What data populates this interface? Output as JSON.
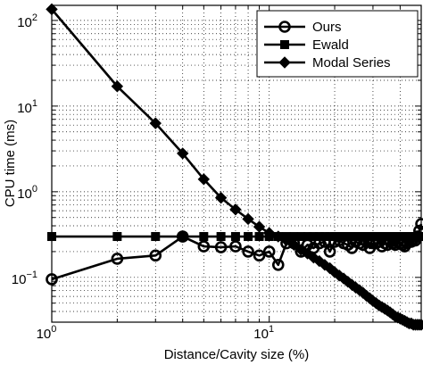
{
  "chart_data": {
    "type": "line",
    "xlabel": "Distance/Cavity size (%)",
    "ylabel": "CPU time (ms)",
    "x_scale": "log",
    "y_scale": "log",
    "xlim": [
      1,
      50
    ],
    "ylim": [
      0.03,
      150
    ],
    "x_ticks": [
      {
        "value": 1,
        "label": "10",
        "exp": "0"
      },
      {
        "value": 10,
        "label": "10",
        "exp": "1"
      }
    ],
    "y_ticks": [
      {
        "value": 0.1,
        "label": "10",
        "exp": "−1"
      },
      {
        "value": 1,
        "label": "10",
        "exp": "0"
      },
      {
        "value": 10,
        "label": "10",
        "exp": "1"
      },
      {
        "value": 100,
        "label": "10",
        "exp": "2"
      }
    ],
    "grid": true,
    "legend_position": "top-right",
    "colors": {
      "lines": "#000000",
      "grid": "#000000",
      "background": "#ffffff"
    },
    "series": [
      {
        "name": "Ours",
        "marker": "circle",
        "x": [
          1,
          2,
          3,
          4,
          5,
          6,
          7,
          8,
          9,
          10,
          11,
          12,
          13,
          14,
          15,
          16,
          17,
          18,
          19,
          20,
          21,
          22,
          23,
          24,
          25,
          26,
          27,
          28,
          29,
          30,
          31,
          32,
          33,
          34,
          35,
          36,
          37,
          38,
          39,
          40,
          41,
          42,
          43,
          44,
          45,
          46,
          47,
          48,
          49,
          50
        ],
        "y": [
          0.095,
          0.165,
          0.18,
          0.3,
          0.23,
          0.225,
          0.23,
          0.2,
          0.18,
          0.2,
          0.14,
          0.25,
          0.25,
          0.2,
          0.24,
          0.22,
          0.25,
          0.26,
          0.2,
          0.26,
          0.27,
          0.25,
          0.24,
          0.22,
          0.26,
          0.25,
          0.24,
          0.26,
          0.22,
          0.25,
          0.25,
          0.26,
          0.23,
          0.25,
          0.24,
          0.26,
          0.25,
          0.24,
          0.26,
          0.25,
          0.24,
          0.23,
          0.25,
          0.27,
          0.26,
          0.28,
          0.27,
          0.3,
          0.35,
          0.42
        ]
      },
      {
        "name": "Ewald",
        "marker": "square",
        "x": [
          1,
          2,
          3,
          4,
          5,
          6,
          7,
          8,
          9,
          10,
          11,
          12,
          13,
          14,
          15,
          16,
          17,
          18,
          19,
          20,
          21,
          22,
          23,
          24,
          25,
          26,
          27,
          28,
          29,
          30,
          31,
          32,
          33,
          34,
          35,
          36,
          37,
          38,
          39,
          40,
          41,
          42,
          43,
          44,
          45,
          46,
          47,
          48,
          49,
          50
        ],
        "y": [
          0.3,
          0.3,
          0.3,
          0.3,
          0.3,
          0.3,
          0.3,
          0.3,
          0.3,
          0.3,
          0.3,
          0.3,
          0.3,
          0.3,
          0.3,
          0.3,
          0.3,
          0.3,
          0.3,
          0.3,
          0.3,
          0.3,
          0.3,
          0.3,
          0.3,
          0.3,
          0.3,
          0.3,
          0.3,
          0.3,
          0.3,
          0.3,
          0.3,
          0.3,
          0.3,
          0.3,
          0.3,
          0.3,
          0.3,
          0.3,
          0.3,
          0.3,
          0.3,
          0.3,
          0.3,
          0.3,
          0.3,
          0.3,
          0.3,
          0.3
        ]
      },
      {
        "name": "Modal Series",
        "marker": "diamond",
        "x": [
          1,
          2,
          3,
          4,
          5,
          6,
          7,
          8,
          9,
          10,
          11,
          12,
          13,
          14,
          15,
          16,
          17,
          18,
          19,
          20,
          21,
          22,
          23,
          24,
          25,
          26,
          27,
          28,
          29,
          30,
          31,
          32,
          33,
          34,
          35,
          36,
          37,
          38,
          39,
          40,
          41,
          42,
          43,
          44,
          45,
          46,
          47,
          48,
          49,
          50
        ],
        "y": [
          135,
          17,
          6.3,
          2.8,
          1.4,
          0.85,
          0.62,
          0.48,
          0.39,
          0.33,
          0.3,
          0.27,
          0.24,
          0.21,
          0.19,
          0.17,
          0.155,
          0.14,
          0.128,
          0.115,
          0.105,
          0.097,
          0.089,
          0.082,
          0.076,
          0.071,
          0.066,
          0.061,
          0.057,
          0.053,
          0.05,
          0.047,
          0.045,
          0.043,
          0.041,
          0.039,
          0.037,
          0.035,
          0.034,
          0.033,
          0.032,
          0.031,
          0.03,
          0.029,
          0.029,
          0.028,
          0.028,
          0.028,
          0.028,
          0.028
        ]
      }
    ]
  }
}
